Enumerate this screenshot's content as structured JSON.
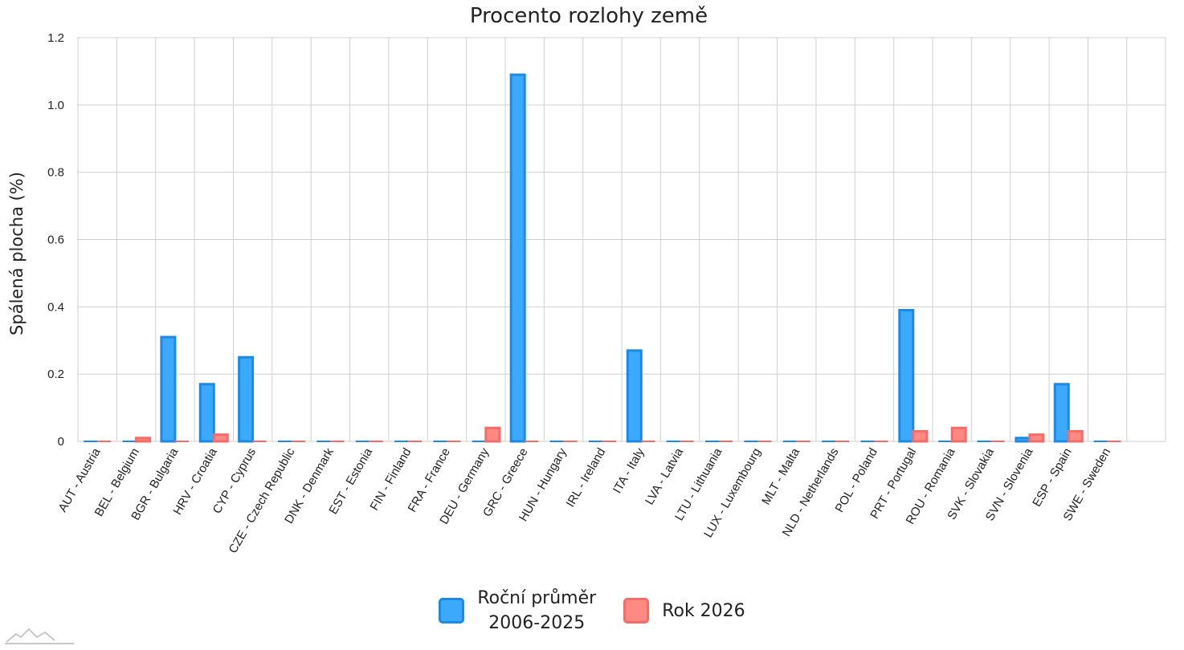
{
  "chart_data": {
    "type": "bar",
    "title": "Procento rozlohy země",
    "ylabel": "Spálená plocha (%)",
    "xlabel": "",
    "ylim": [
      0,
      1.2
    ],
    "yticks": [
      "0",
      "0.2",
      "0.4",
      "0.6",
      "0.8",
      "1.0",
      "1.2"
    ],
    "grid": true,
    "legend_position": "bottom",
    "categories": [
      "AUT - Austria",
      "BEL - Belgium",
      "BGR - Bulgaria",
      "HRV - Croatia",
      "CYP - Cyprus",
      "CZE - Czech Republic",
      "DNK - Denmark",
      "EST - Estonia",
      "FIN - Finland",
      "FRA - France",
      "DEU - Germany",
      "GRC - Greece",
      "HUN - Hungary",
      "IRL - Ireland",
      "ITA - Italy",
      "LVA - Latvia",
      "LTU - Lithuania",
      "LUX - Luxembourg",
      "MLT - Malta",
      "NLD - Netherlands",
      "POL - Poland",
      "PRT - Portugal",
      "ROU - Romania",
      "SVK - Slovakia",
      "SVN - Slovenia",
      "ESP - Spain",
      "SWE - Sweden"
    ],
    "series": [
      {
        "name": "Roční průměr 2006-2025",
        "color": "#3da9fc",
        "border_color": "#1a8ae6",
        "values": [
          0,
          0,
          0.31,
          0.17,
          0.25,
          0,
          0,
          0,
          0,
          0,
          0,
          1.09,
          0,
          0,
          0.27,
          0,
          0,
          0,
          0,
          0,
          0,
          0.39,
          0,
          0,
          0.01,
          0.17,
          0
        ]
      },
      {
        "name": "Rok 2026",
        "color": "#ff8a84",
        "border_color": "#f56b66",
        "values": [
          0,
          0.01,
          0,
          0.02,
          0,
          0,
          0,
          0,
          0,
          0,
          0.04,
          0,
          0,
          0,
          0,
          0,
          0,
          0,
          0,
          0,
          0,
          0.03,
          0.04,
          0,
          0.02,
          0.03,
          0
        ]
      }
    ]
  },
  "legend": {
    "items": [
      {
        "line1": "Roční průměr",
        "line2": "2006-2025"
      },
      {
        "line1": "Rok 2026",
        "line2": ""
      }
    ]
  }
}
